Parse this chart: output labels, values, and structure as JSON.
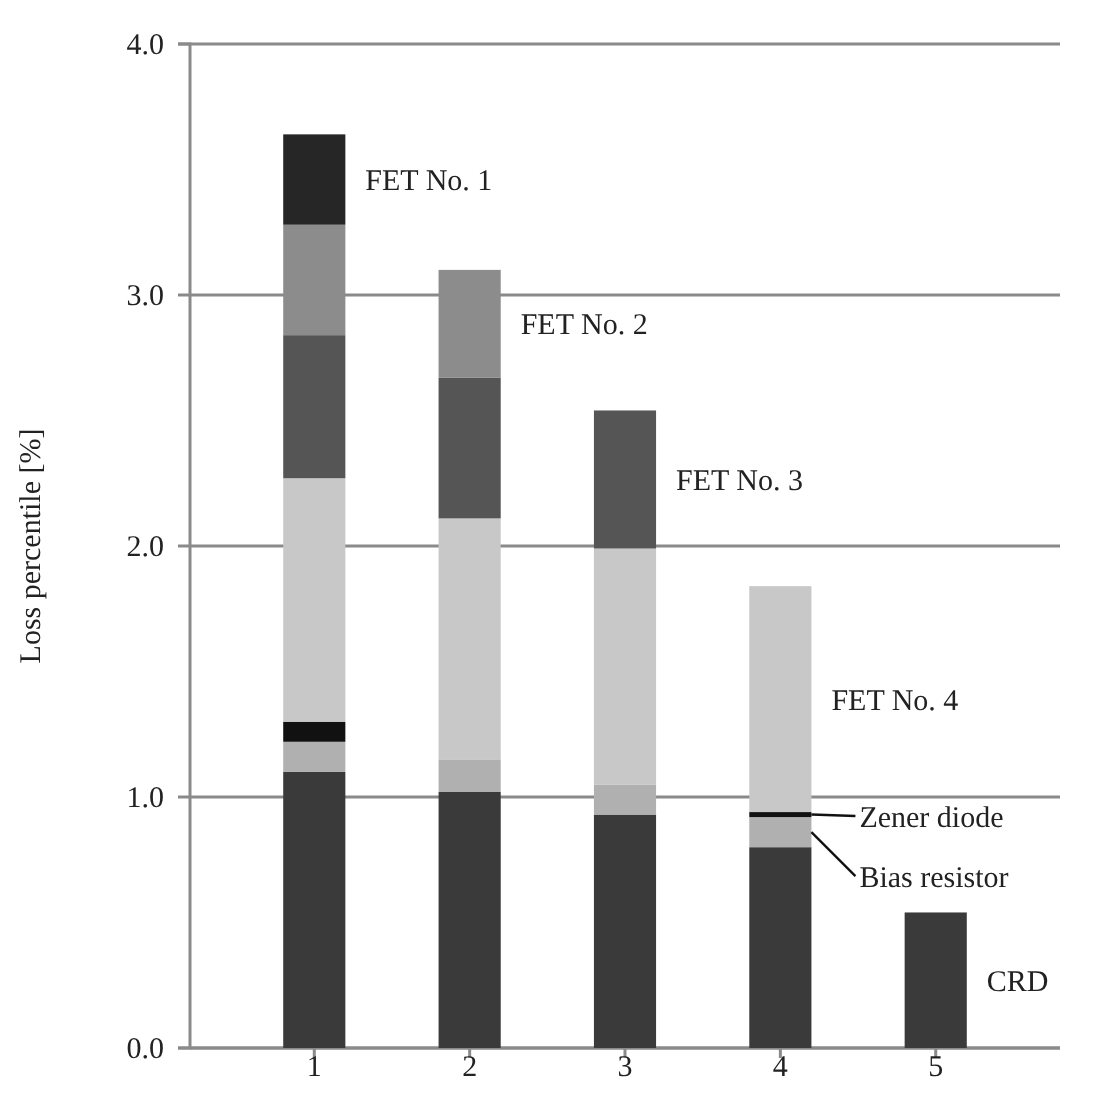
{
  "chart_data": {
    "type": "bar",
    "stacked": true,
    "ylabel": "Loss percentile [%]",
    "categories": [
      "1",
      "2",
      "3",
      "4",
      "5"
    ],
    "series": [
      {
        "name": "CRD",
        "color": "#3a3a3a",
        "values": [
          1.1,
          1.02,
          0.93,
          0.8,
          0.54
        ]
      },
      {
        "name": "Bias resistor",
        "color": "#b0b0b0",
        "values": [
          0.12,
          0.13,
          0.12,
          0.12,
          null
        ]
      },
      {
        "name": "Zener diode",
        "color": "#111111",
        "values": [
          0.08,
          null,
          null,
          0.02,
          null
        ]
      },
      {
        "name": "FET No. 4",
        "color": "#c8c8c8",
        "values": [
          0.97,
          0.96,
          0.94,
          0.9,
          null
        ]
      },
      {
        "name": "FET No. 3",
        "color": "#555555",
        "values": [
          0.57,
          0.56,
          0.55,
          null,
          null
        ]
      },
      {
        "name": "FET No. 2",
        "color": "#8c8c8c",
        "values": [
          0.44,
          0.43,
          null,
          null,
          null
        ]
      },
      {
        "name": "FET No. 1",
        "color": "#262626",
        "values": [
          0.36,
          null,
          null,
          null,
          null
        ]
      }
    ],
    "ylim": [
      0,
      4
    ],
    "yticks": [
      {
        "value": 0,
        "label": "0.0"
      },
      {
        "value": 1,
        "label": "1.0"
      },
      {
        "value": 2,
        "label": "2.0"
      },
      {
        "value": 3,
        "label": "3.0"
      },
      {
        "value": 4,
        "label": "4.0"
      }
    ],
    "grid": "y"
  }
}
